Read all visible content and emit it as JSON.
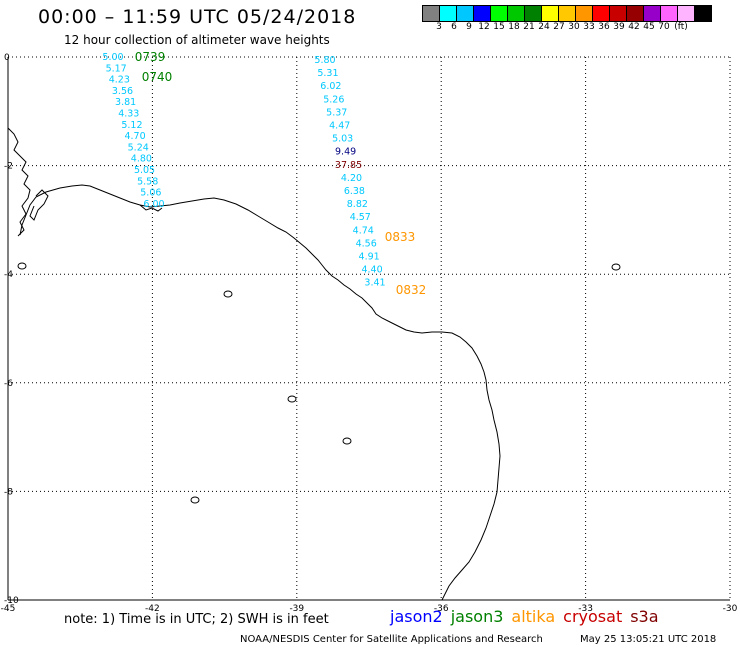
{
  "header": {
    "title": "00:00 – 11:59 UTC 05/24/2018",
    "subtitle": "12 hour collection of altimeter wave heights"
  },
  "legend": {
    "unit": "(ft)",
    "colors": [
      "#808080",
      "#00ffff",
      "#00c8ff",
      "#0000ff",
      "#00ff00",
      "#00c800",
      "#008000",
      "#ffff00",
      "#ffc800",
      "#ff9600",
      "#ff0000",
      "#c80000",
      "#960000",
      "#9600c8",
      "#ff64ff",
      "#ffb4ff",
      "#000000"
    ],
    "labels": [
      "3",
      "6",
      "9",
      "12",
      "15",
      "18",
      "21",
      "24",
      "27",
      "30",
      "33",
      "36",
      "39",
      "42",
      "45",
      "70"
    ]
  },
  "map": {
    "lon_ticks": [
      "-45",
      "-42",
      "-39",
      "-36",
      "-33",
      "-30"
    ],
    "lat_ticks": [
      "0",
      "-2",
      "-4",
      "-6",
      "-8",
      "-10"
    ],
    "track1": [
      "5.00",
      "5.17",
      "4.23",
      "3.56",
      "3.81",
      "4.33",
      "5.12",
      "4.70",
      "5.24",
      "4.80",
      "5.05",
      "5.58",
      "5.06",
      "6.00"
    ],
    "track1_times": [
      "0739",
      "0740"
    ],
    "track2": [
      "5.80",
      "5.31",
      "6.02",
      "5.26",
      "5.37",
      "4.47",
      "5.03",
      "9.49",
      "37.85",
      "4.20",
      "6.38",
      "8.82",
      "4.57",
      "4.74",
      "4.56",
      "4.91",
      "4.40",
      "3.41"
    ],
    "track2_times": [
      "0833",
      "0832"
    ],
    "colors": {
      "track1_time": "#008000",
      "track2_time": "#ff9600",
      "wave_cyan": "#00c8ff",
      "wave_navy": "#000080",
      "wave_darkred": "#800000"
    }
  },
  "footer": {
    "note": "note:  1) Time is in UTC;  2) SWH is in feet",
    "satellites": [
      {
        "name": "jason2",
        "color": "#0000ff"
      },
      {
        "name": "jason3",
        "color": "#008000"
      },
      {
        "name": "altika",
        "color": "#ff9600"
      },
      {
        "name": "cryosat",
        "color": "#c80000"
      },
      {
        "name": "s3a",
        "color": "#800000"
      }
    ],
    "credit": "NOAA/NESDIS Center for Satellite Applications and Research",
    "timestamp": "May 25 13:05:21 UTC 2018"
  }
}
